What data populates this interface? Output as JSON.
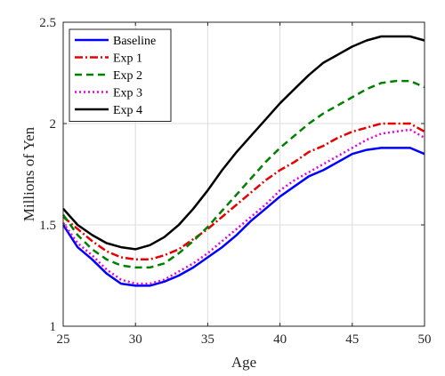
{
  "chart_data": {
    "type": "line",
    "title": "",
    "xlabel": "Age",
    "ylabel": "Millions of Yen",
    "xlim": [
      25,
      50
    ],
    "ylim": [
      1,
      2.5
    ],
    "xticks": [
      25,
      30,
      35,
      40,
      45,
      50
    ],
    "xtick_labels": [
      "25",
      "30",
      "35",
      "40",
      "45",
      "50"
    ],
    "yticks": [
      1,
      1.5,
      2,
      2.5
    ],
    "ytick_labels": [
      "1",
      "1.5",
      "2",
      "2.5"
    ],
    "grid": true,
    "legend_position": "top-left",
    "x": [
      25,
      26,
      27,
      28,
      29,
      30,
      31,
      32,
      33,
      34,
      35,
      36,
      37,
      38,
      39,
      40,
      41,
      42,
      43,
      44,
      45,
      46,
      47,
      48,
      49,
      50
    ],
    "series": [
      {
        "name": "Baseline",
        "color": "#0000FF",
        "dash": "solid",
        "values": [
          1.5,
          1.39,
          1.33,
          1.26,
          1.21,
          1.2,
          1.2,
          1.22,
          1.25,
          1.29,
          1.34,
          1.39,
          1.45,
          1.52,
          1.58,
          1.64,
          1.69,
          1.74,
          1.77,
          1.81,
          1.85,
          1.87,
          1.88,
          1.88,
          1.88,
          1.85
        ]
      },
      {
        "name": "Exp 1",
        "color": "#E60000",
        "dash": "dashdot",
        "values": [
          1.54,
          1.48,
          1.42,
          1.37,
          1.34,
          1.33,
          1.33,
          1.35,
          1.38,
          1.43,
          1.48,
          1.54,
          1.6,
          1.66,
          1.72,
          1.77,
          1.81,
          1.86,
          1.89,
          1.93,
          1.96,
          1.98,
          2.0,
          2.0,
          2.0,
          1.96
        ]
      },
      {
        "name": "Exp 2",
        "color": "#008000",
        "dash": "dashed",
        "values": [
          1.55,
          1.45,
          1.38,
          1.33,
          1.3,
          1.29,
          1.29,
          1.31,
          1.36,
          1.42,
          1.49,
          1.57,
          1.65,
          1.73,
          1.81,
          1.88,
          1.94,
          2.0,
          2.05,
          2.09,
          2.13,
          2.17,
          2.2,
          2.21,
          2.21,
          2.18
        ]
      },
      {
        "name": "Exp 3",
        "color": "#E600E6",
        "dash": "dotted",
        "values": [
          1.51,
          1.41,
          1.35,
          1.28,
          1.23,
          1.21,
          1.21,
          1.23,
          1.27,
          1.31,
          1.36,
          1.42,
          1.48,
          1.54,
          1.6,
          1.67,
          1.72,
          1.76,
          1.8,
          1.84,
          1.88,
          1.92,
          1.95,
          1.96,
          1.97,
          1.93
        ]
      },
      {
        "name": "Exp 4",
        "color": "#000000",
        "dash": "solid",
        "values": [
          1.58,
          1.5,
          1.45,
          1.41,
          1.39,
          1.38,
          1.4,
          1.44,
          1.5,
          1.58,
          1.67,
          1.77,
          1.86,
          1.94,
          2.02,
          2.1,
          2.17,
          2.24,
          2.3,
          2.34,
          2.38,
          2.41,
          2.43,
          2.43,
          2.43,
          2.41
        ]
      }
    ]
  }
}
